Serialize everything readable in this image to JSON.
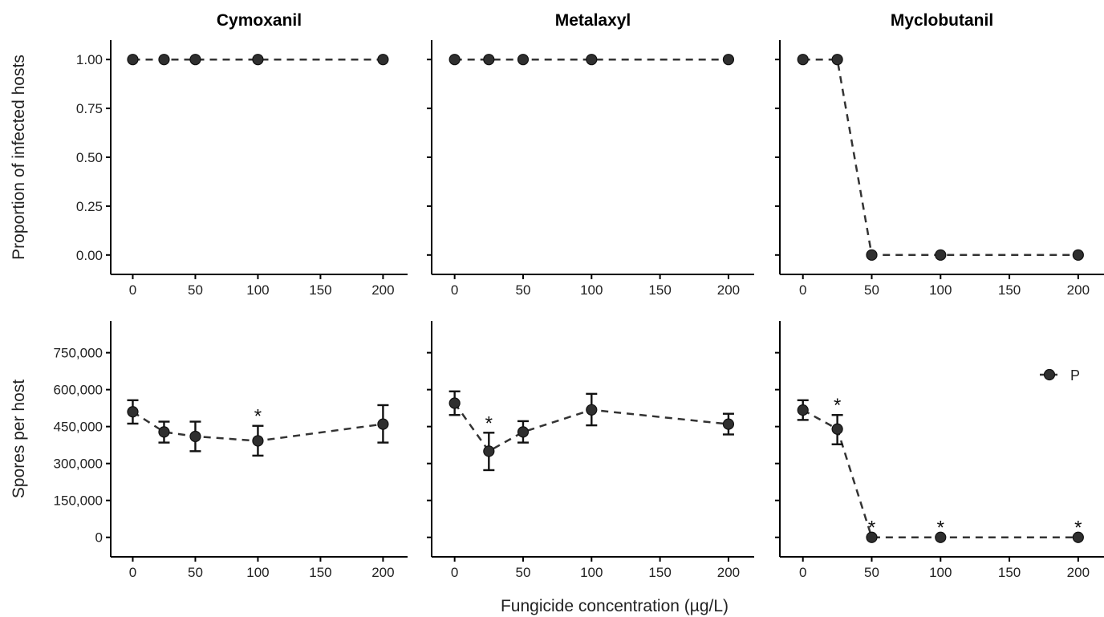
{
  "figure": {
    "xlabel": "Fungicide concentration (µg/L)",
    "legend": {
      "label": "P",
      "placement": "right"
    }
  },
  "chart_data": [
    {
      "type": "line",
      "title": "Cymoxanil",
      "ylabel": "Proportion of infected hosts",
      "x": [
        0,
        25,
        50,
        100,
        200
      ],
      "xlim": [
        -8,
        210
      ],
      "xticks": [
        0,
        50,
        100,
        150,
        200
      ],
      "xtick_labels": [
        "0",
        "50",
        "100",
        "150",
        "200"
      ],
      "ylim": [
        -0.05,
        1.05
      ],
      "yticks": [
        0,
        0.25,
        0.5,
        0.75,
        1
      ],
      "ytick_labels": [
        "0.00",
        "0.25",
        "0.50",
        "0.75",
        "1.00"
      ],
      "series": [
        {
          "values": [
            1,
            1,
            1,
            1,
            1
          ]
        }
      ]
    },
    {
      "type": "line",
      "title": "Metalaxyl",
      "ylabel": "",
      "x": [
        0,
        25,
        50,
        100,
        200
      ],
      "xlim": [
        -8,
        210
      ],
      "xticks": [
        0,
        50,
        100,
        150,
        200
      ],
      "xtick_labels": [
        "0",
        "50",
        "100",
        "150",
        "200"
      ],
      "ylim": [
        -0.05,
        1.05
      ],
      "yticks": [
        0,
        0.25,
        0.5,
        0.75,
        1
      ],
      "ytick_labels": [
        "",
        "",
        "",
        "",
        ""
      ],
      "series": [
        {
          "values": [
            1,
            1,
            1,
            1,
            1
          ]
        }
      ]
    },
    {
      "type": "line",
      "title": "Myclobutanil",
      "ylabel": "",
      "x": [
        0,
        25,
        50,
        100,
        200
      ],
      "xlim": [
        -8,
        210
      ],
      "xticks": [
        0,
        50,
        100,
        150,
        200
      ],
      "xtick_labels": [
        "0",
        "50",
        "100",
        "150",
        "200"
      ],
      "ylim": [
        -0.05,
        1.05
      ],
      "yticks": [
        0,
        0.25,
        0.5,
        0.75,
        1
      ],
      "ytick_labels": [
        "",
        "",
        "",
        "",
        ""
      ],
      "series": [
        {
          "values": [
            1,
            1,
            0,
            0,
            0
          ]
        }
      ]
    },
    {
      "type": "line",
      "title": "",
      "ylabel": "Spores per host",
      "x": [
        0,
        25,
        50,
        100,
        200
      ],
      "xlim": [
        -8,
        210
      ],
      "xticks": [
        0,
        50,
        100,
        150,
        200
      ],
      "xtick_labels": [
        "0",
        "50",
        "100",
        "150",
        "200"
      ],
      "ylim": [
        -40000,
        840000
      ],
      "yticks": [
        0,
        150000,
        300000,
        450000,
        600000,
        750000
      ],
      "ytick_labels": [
        "0",
        "150,000",
        "300,000",
        "450,000",
        "600,000",
        "750,000"
      ],
      "series": [
        {
          "values": [
            510000,
            428000,
            410000,
            392000,
            460000
          ],
          "err_low": [
            462000,
            385000,
            350000,
            332000,
            385000
          ],
          "err_high": [
            557000,
            470000,
            470000,
            453000,
            537000
          ],
          "significance": [
            "",
            "",
            "",
            "*",
            ""
          ]
        }
      ]
    },
    {
      "type": "line",
      "title": "",
      "ylabel": "",
      "x": [
        0,
        25,
        50,
        100,
        200
      ],
      "xlim": [
        -8,
        210
      ],
      "xticks": [
        0,
        50,
        100,
        150,
        200
      ],
      "xtick_labels": [
        "0",
        "50",
        "100",
        "150",
        "200"
      ],
      "ylim": [
        -40000,
        840000
      ],
      "yticks": [
        0,
        150000,
        300000,
        450000,
        600000,
        750000
      ],
      "ytick_labels": [
        "",
        "",
        "",
        "",
        "",
        ""
      ],
      "series": [
        {
          "values": [
            545000,
            350000,
            428000,
            518000,
            460000
          ],
          "err_low": [
            497000,
            273000,
            385000,
            455000,
            418000
          ],
          "err_high": [
            593000,
            425000,
            472000,
            583000,
            502000
          ],
          "significance": [
            "",
            "*",
            "",
            "",
            ""
          ]
        }
      ]
    },
    {
      "type": "line",
      "title": "",
      "ylabel": "",
      "x": [
        0,
        25,
        50,
        100,
        200
      ],
      "xlim": [
        -8,
        210
      ],
      "xticks": [
        0,
        50,
        100,
        150,
        200
      ],
      "xtick_labels": [
        "0",
        "50",
        "100",
        "150",
        "200"
      ],
      "ylim": [
        -40000,
        840000
      ],
      "yticks": [
        0,
        150000,
        300000,
        450000,
        600000,
        750000
      ],
      "ytick_labels": [
        "",
        "",
        "",
        "",
        "",
        ""
      ],
      "series": [
        {
          "values": [
            517000,
            440000,
            0,
            0,
            0
          ],
          "err_low": [
            477000,
            378000,
            0,
            0,
            0
          ],
          "err_high": [
            557000,
            497000,
            0,
            0,
            0
          ],
          "significance": [
            "",
            "*",
            "*",
            "*",
            "*"
          ]
        }
      ]
    }
  ]
}
